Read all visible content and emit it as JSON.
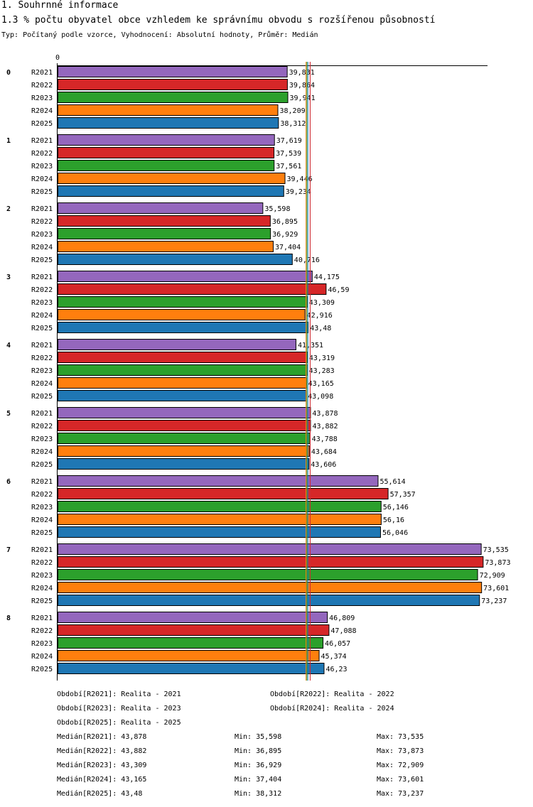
{
  "header": {
    "title": "1. Souhrnné informace",
    "subtitle": "1.3 % počtu obyvatel obce vzhledem ke správnímu obvodu s rozšířenou působností",
    "type_line": "Typ: Počítaný podle vzorce, Vyhodnocení: Absolutní hodnoty, Průměr: Medián"
  },
  "chart_data": {
    "type": "bar",
    "orientation": "horizontal",
    "axis_zero_label": "0",
    "xlim": [
      0,
      75
    ],
    "categories": [
      "0",
      "1",
      "2",
      "3",
      "4",
      "5",
      "6",
      "7",
      "8"
    ],
    "series": [
      {
        "name": "R2021",
        "color": "#9467bd",
        "values": [
          39.831,
          37.619,
          35.598,
          44.175,
          41.351,
          43.878,
          55.614,
          73.535,
          46.809
        ],
        "labels": [
          "39,831",
          "37,619",
          "35,598",
          "44,175",
          "41,351",
          "43,878",
          "55,614",
          "73,535",
          "46,809"
        ]
      },
      {
        "name": "R2022",
        "color": "#d62728",
        "values": [
          39.864,
          37.539,
          36.895,
          46.59,
          43.319,
          43.882,
          57.357,
          73.873,
          47.088
        ],
        "labels": [
          "39,864",
          "37,539",
          "36,895",
          "46,59",
          "43,319",
          "43,882",
          "57,357",
          "73,873",
          "47,088"
        ]
      },
      {
        "name": "R2023",
        "color": "#2ca02c",
        "values": [
          39.941,
          37.561,
          36.929,
          43.309,
          43.283,
          43.788,
          56.146,
          72.909,
          46.057
        ],
        "labels": [
          "39,941",
          "37,561",
          "36,929",
          "43,309",
          "43,283",
          "43,788",
          "56,146",
          "72,909",
          "46,057"
        ]
      },
      {
        "name": "R2024",
        "color": "#ff7f0e",
        "values": [
          38.209,
          39.446,
          37.404,
          42.916,
          43.165,
          43.684,
          56.16,
          73.601,
          45.374
        ],
        "labels": [
          "38,209",
          "39,446",
          "37,404",
          "42,916",
          "43,165",
          "43,684",
          "56,16",
          "73,601",
          "45,374"
        ]
      },
      {
        "name": "R2025",
        "color": "#1f77b4",
        "values": [
          38.312,
          39.234,
          40.716,
          43.48,
          43.098,
          43.606,
          56.046,
          73.237,
          46.23
        ],
        "labels": [
          "38,312",
          "39,234",
          "40,716",
          "43,48",
          "43,098",
          "43,606",
          "56,046",
          "73,237",
          "46,23"
        ]
      }
    ],
    "medians": [
      43.878,
      43.882,
      43.309,
      43.165,
      43.48
    ]
  },
  "legend": {
    "periods": [
      "Období[R2021]: Realita - 2021",
      "Období[R2022]: Realita - 2022",
      "Období[R2023]: Realita - 2023",
      "Období[R2024]: Realita - 2024",
      "Období[R2025]: Realita - 2025"
    ],
    "stats": [
      {
        "median": "Medián[R2021]: 43,878",
        "min": "Min: 35,598",
        "max": "Max: 73,535"
      },
      {
        "median": "Medián[R2022]: 43,882",
        "min": "Min: 36,895",
        "max": "Max: 73,873"
      },
      {
        "median": "Medián[R2023]: 43,309",
        "min": "Min: 36,929",
        "max": "Max: 72,909"
      },
      {
        "median": "Medián[R2024]: 43,165",
        "min": "Min: 37,404",
        "max": "Max: 73,601"
      },
      {
        "median": "Medián[R2025]: 43,48",
        "min": "Min: 38,312",
        "max": "Max: 73,237"
      }
    ]
  }
}
